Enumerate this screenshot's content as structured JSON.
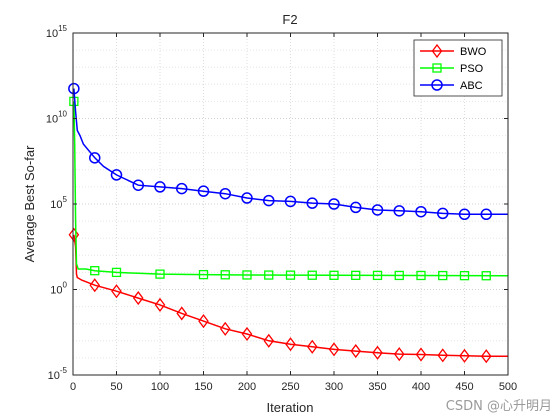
{
  "watermark": "CSDN @心升明月",
  "chart_data": {
    "type": "line",
    "title": "F2",
    "xlabel": "Iteration",
    "ylabel": "Average Best So-far",
    "yscale": "log",
    "xlim": [
      0,
      500
    ],
    "ylim_exponent": [
      -5,
      15
    ],
    "xticks": [
      0,
      50,
      100,
      150,
      200,
      250,
      300,
      350,
      400,
      450,
      500
    ],
    "yticks": [
      {
        "exp": -5,
        "label": "10",
        "sup": "-5"
      },
      {
        "exp": 0,
        "label": "10",
        "sup": "0"
      },
      {
        "exp": 5,
        "label": "10",
        "sup": "5"
      },
      {
        "exp": 10,
        "label": "10",
        "sup": "10"
      },
      {
        "exp": 15,
        "label": "10",
        "sup": "15"
      }
    ],
    "grid": true,
    "legend_position": "top-right",
    "series": [
      {
        "name": "BWO",
        "color": "#ff0000",
        "marker": "diamond",
        "points": [
          [
            1,
            3.2
          ],
          [
            3,
            2.5
          ],
          [
            4,
            0.9
          ],
          [
            5,
            0.7
          ],
          [
            10,
            0.55
          ],
          [
            25,
            0.25
          ],
          [
            50,
            -0.1
          ],
          [
            75,
            -0.5
          ],
          [
            100,
            -0.9
          ],
          [
            125,
            -1.4
          ],
          [
            150,
            -1.85
          ],
          [
            175,
            -2.3
          ],
          [
            200,
            -2.6
          ],
          [
            225,
            -3.0
          ],
          [
            250,
            -3.2
          ],
          [
            275,
            -3.35
          ],
          [
            300,
            -3.5
          ],
          [
            325,
            -3.6
          ],
          [
            350,
            -3.7
          ],
          [
            375,
            -3.78
          ],
          [
            400,
            -3.8
          ],
          [
            425,
            -3.85
          ],
          [
            450,
            -3.88
          ],
          [
            475,
            -3.9
          ],
          [
            500,
            -3.9
          ]
        ],
        "markers_at": [
          1,
          25,
          50,
          75,
          100,
          125,
          150,
          175,
          200,
          225,
          250,
          275,
          300,
          325,
          350,
          375,
          400,
          425,
          450,
          475
        ]
      },
      {
        "name": "PSO",
        "color": "#00ff00",
        "marker": "square",
        "points": [
          [
            1,
            11.0
          ],
          [
            2,
            8.5
          ],
          [
            3,
            4.0
          ],
          [
            4,
            1.5
          ],
          [
            6,
            1.2
          ],
          [
            15,
            1.2
          ],
          [
            25,
            1.1
          ],
          [
            50,
            1.0
          ],
          [
            75,
            0.95
          ],
          [
            100,
            0.9
          ],
          [
            150,
            0.87
          ],
          [
            200,
            0.85
          ],
          [
            300,
            0.83
          ],
          [
            400,
            0.82
          ],
          [
            500,
            0.8
          ]
        ],
        "markers_at": [
          1,
          25,
          50,
          100,
          150,
          175,
          200,
          225,
          250,
          275,
          300,
          325,
          350,
          375,
          400,
          425,
          450,
          475
        ]
      },
      {
        "name": "ABC",
        "color": "#0000ff",
        "marker": "circle",
        "points": [
          [
            1,
            11.75
          ],
          [
            3,
            10.4
          ],
          [
            5,
            9.3
          ],
          [
            8,
            9.0
          ],
          [
            12,
            8.5
          ],
          [
            25,
            7.7
          ],
          [
            35,
            7.2
          ],
          [
            50,
            6.7
          ],
          [
            75,
            6.1
          ],
          [
            100,
            6.0
          ],
          [
            125,
            5.9
          ],
          [
            150,
            5.75
          ],
          [
            175,
            5.6
          ],
          [
            200,
            5.35
          ],
          [
            225,
            5.2
          ],
          [
            250,
            5.15
          ],
          [
            275,
            5.05
          ],
          [
            300,
            5.0
          ],
          [
            325,
            4.8
          ],
          [
            350,
            4.65
          ],
          [
            375,
            4.6
          ],
          [
            400,
            4.55
          ],
          [
            425,
            4.45
          ],
          [
            450,
            4.4
          ],
          [
            475,
            4.4
          ],
          [
            500,
            4.4
          ]
        ],
        "markers_at": [
          1,
          25,
          50,
          75,
          100,
          125,
          150,
          175,
          200,
          225,
          250,
          275,
          300,
          325,
          350,
          375,
          400,
          425,
          450,
          475
        ]
      }
    ]
  }
}
